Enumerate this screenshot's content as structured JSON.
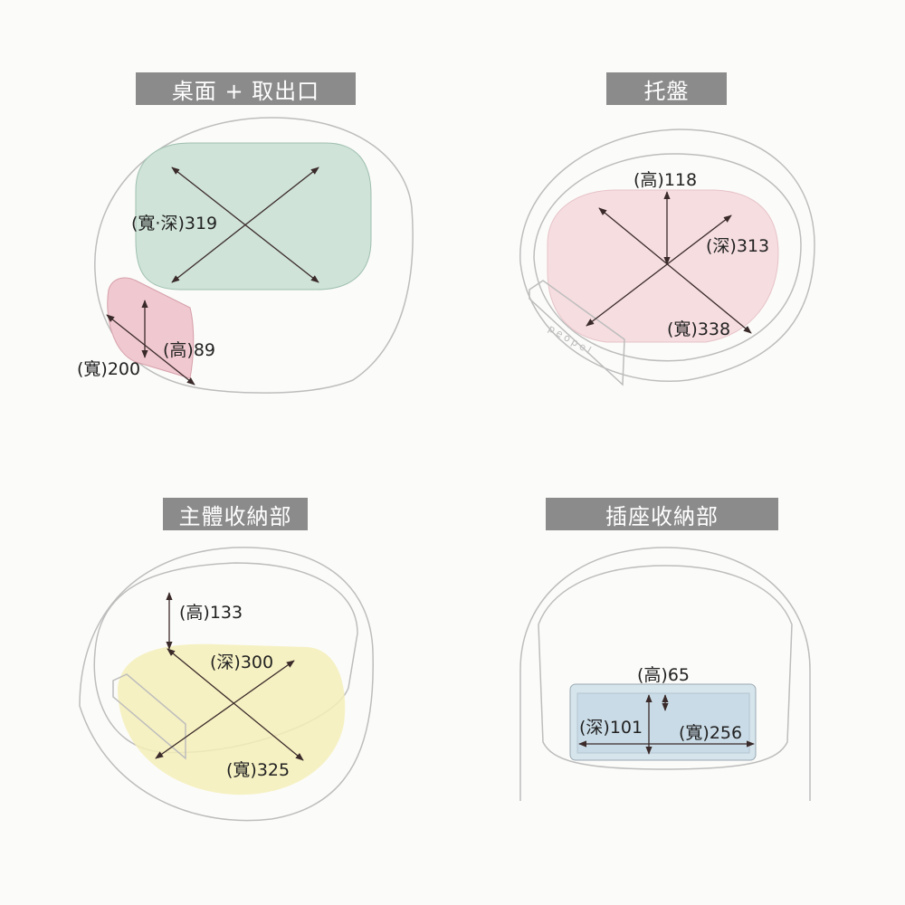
{
  "panels": [
    {
      "title": "桌面 + 取出口",
      "labels": {
        "diag": "(寬‧深)319",
        "height": "(高)89",
        "width": "(寬)200"
      },
      "fill_color": "#cfe3d8",
      "accent_color": "#f0c8cf"
    },
    {
      "title": "托盤",
      "labels": {
        "height": "(高)118",
        "depth": "(深)313",
        "width": "(寬)338"
      },
      "fill_color": "#f6dde0",
      "logo_text": "peopel"
    },
    {
      "title": "主體收納部",
      "labels": {
        "height": "(高)133",
        "depth": "(深)300",
        "width": "(寬)325"
      },
      "fill_color": "#f5efb8"
    },
    {
      "title": "插座收納部",
      "labels": {
        "height": "(高)65",
        "depth": "(深)101",
        "width": "(寬)256"
      },
      "fill_color": "#d6e4ec"
    }
  ],
  "colors": {
    "title_bar": "#8b8b8b",
    "background": "#fbfbf9"
  }
}
